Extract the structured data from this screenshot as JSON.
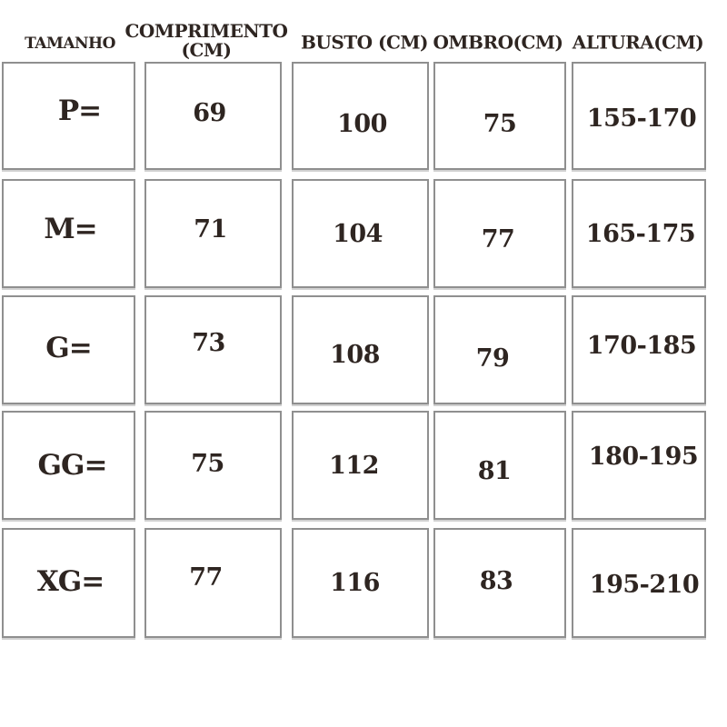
{
  "chart_data": {
    "type": "table",
    "title": "",
    "columns": [
      "TAMANHO",
      "COMPRIMENTO (CM)",
      "BUSTO (CM)",
      "OMBRO(CM)",
      "ALTURA(CM)"
    ],
    "rows": [
      [
        "P=",
        "69",
        "100",
        "75",
        "155-170"
      ],
      [
        "M=",
        "71",
        "104",
        "77",
        "165-175"
      ],
      [
        "G=",
        "73",
        "108",
        "79",
        "170-185"
      ],
      [
        "GG=",
        "75",
        "112",
        "81",
        "180-195"
      ],
      [
        "XG=",
        "77",
        "116",
        "83",
        "195-210"
      ]
    ],
    "row_unit": "cm",
    "layout": "size-chart grid of bordered cells, header row on top, no gridlines between cells (separate boxes)"
  },
  "colors": {
    "background": "#ffffff",
    "text": "#2e2521",
    "cell_border": "#8f8f8f"
  }
}
